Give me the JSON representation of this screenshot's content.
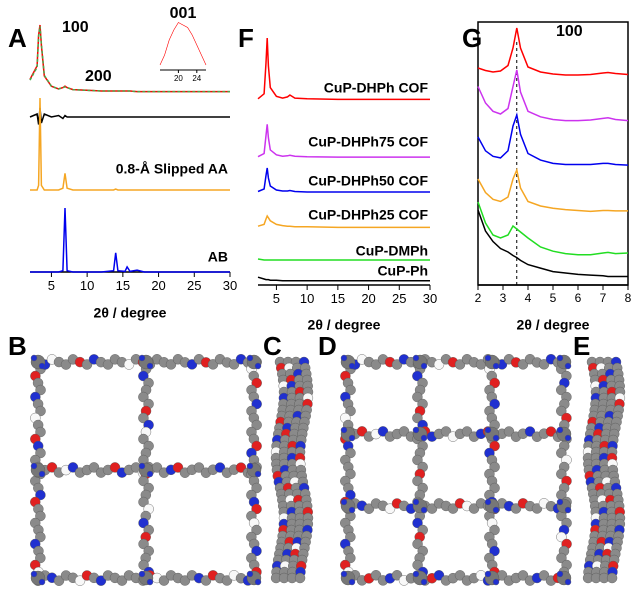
{
  "chart_data": [
    {
      "type": "line",
      "panel": "A",
      "xlabel": "2θ / degree",
      "xlim": [
        2,
        30
      ],
      "xticks": [
        5,
        10,
        15,
        20,
        25,
        30
      ],
      "annotations": [
        "100",
        "200"
      ],
      "x": [
        2,
        3,
        3.2,
        3.4,
        3.6,
        4,
        5,
        6,
        6.6,
        6.9,
        7.2,
        8,
        10,
        12,
        13.7,
        14,
        14.3,
        15.3,
        15.6,
        16,
        17,
        18,
        20,
        22,
        24,
        26,
        28,
        30
      ],
      "series": [
        {
          "color": "#ff0000",
          "values": [
            20,
            40,
            85,
            100,
            70,
            25,
            10,
            6,
            8,
            10,
            8,
            5,
            4,
            3,
            3,
            3,
            3,
            3,
            3,
            3,
            2,
            2,
            2,
            2,
            2,
            2,
            2,
            2
          ]
        },
        {
          "color": "#4aa84a",
          "dashed": true,
          "values": [
            19,
            38,
            83,
            98,
            72,
            26,
            10,
            6,
            8,
            9,
            8,
            5,
            4,
            3,
            3,
            3,
            3,
            3,
            3,
            3,
            2,
            2,
            2,
            2,
            2,
            2,
            2,
            2
          ]
        },
        {
          "color": "#000000",
          "values": [
            0,
            2,
            -5,
            6,
            -4,
            2,
            0,
            1,
            -1,
            1,
            0,
            0,
            0,
            0,
            0,
            0,
            0,
            0,
            0,
            0,
            0,
            0,
            0,
            0,
            0,
            0,
            0,
            0
          ]
        },
        {
          "name": "0.8-Å Slipped AA",
          "color": "#f5a623",
          "values": [
            0,
            0,
            5,
            100,
            5,
            0,
            0,
            0,
            2,
            18,
            2,
            0,
            0,
            0,
            0,
            1,
            0,
            0,
            0,
            0,
            0,
            0,
            0,
            0,
            0,
            0,
            0,
            0
          ]
        },
        {
          "name": "AB",
          "color": "#0000ee",
          "values": [
            0,
            0,
            0,
            0,
            0,
            0,
            0,
            0,
            2,
            100,
            2,
            0,
            0,
            0,
            2,
            30,
            2,
            1,
            8,
            1,
            3,
            0,
            0,
            0,
            0,
            0,
            0,
            0
          ]
        }
      ]
    },
    {
      "type": "line",
      "inset": true,
      "title": "001",
      "xlim": [
        16,
        26
      ],
      "xticks": [
        20,
        24
      ],
      "x": [
        16,
        17,
        18,
        19,
        20,
        21,
        22,
        23,
        24,
        25,
        26
      ],
      "series": [
        {
          "color": "#ff0000",
          "values": [
            10,
            30,
            60,
            80,
            95,
            90,
            85,
            70,
            50,
            30,
            10
          ]
        }
      ]
    },
    {
      "type": "line",
      "panel": "F",
      "xlabel": "2θ / degree",
      "xlim": [
        2,
        30
      ],
      "xticks": [
        5,
        10,
        15,
        20,
        25,
        30
      ],
      "x": [
        2,
        3,
        3.3,
        3.5,
        3.7,
        4,
        5,
        6,
        6.8,
        7.2,
        8,
        10,
        15,
        20,
        25,
        30
      ],
      "series": [
        {
          "name": "CuP-DHPh COF",
          "color": "#ff0000",
          "values": [
            2,
            10,
            60,
            100,
            55,
            20,
            6,
            3,
            5,
            8,
            3,
            2,
            1,
            1,
            1,
            1
          ]
        },
        {
          "name": "CuP-DHPh75 COF",
          "color": "#cc33ee",
          "values": [
            3,
            10,
            50,
            75,
            45,
            18,
            7,
            4,
            5,
            6,
            4,
            3,
            2,
            2,
            2,
            2
          ]
        },
        {
          "name": "CuP-DHPh50 COF",
          "color": "#0000ee",
          "values": [
            3,
            8,
            35,
            50,
            30,
            14,
            6,
            4,
            4,
            5,
            3,
            2,
            2,
            2,
            2,
            2
          ]
        },
        {
          "name": "CuP-DHPh25 COF",
          "color": "#f5a623",
          "values": [
            3,
            6,
            15,
            20,
            17,
            12,
            6,
            4,
            3,
            3,
            2,
            2,
            1,
            1,
            1,
            1
          ]
        },
        {
          "name": "CuP-DMPh",
          "color": "#22dd22",
          "values": [
            3,
            2,
            2,
            2,
            2,
            2,
            2,
            2,
            2,
            2,
            2,
            2,
            2,
            2,
            2,
            2
          ]
        },
        {
          "name": "CuP-Ph",
          "color": "#000000",
          "values": [
            8,
            5,
            4,
            4,
            4,
            3,
            3,
            2,
            2,
            2,
            2,
            2,
            2,
            2,
            2,
            2
          ]
        }
      ]
    },
    {
      "type": "line",
      "panel": "G",
      "xlabel": "2θ / degree",
      "xlim": [
        2,
        8
      ],
      "xticks": [
        2,
        3,
        4,
        5,
        6,
        7,
        8
      ],
      "annotations": [
        "100"
      ],
      "reference_x": 3.55,
      "x": [
        2,
        2.3,
        2.6,
        2.9,
        3.2,
        3.4,
        3.55,
        3.7,
        4,
        4.5,
        5,
        5.5,
        6,
        6.5,
        7,
        7.2,
        7.5,
        8
      ],
      "series": [
        {
          "color": "#ff0000",
          "values": [
            20,
            15,
            12,
            14,
            25,
            60,
            100,
            60,
            22,
            12,
            8,
            6,
            6,
            7,
            10,
            11,
            9,
            7
          ]
        },
        {
          "color": "#cc33ee",
          "values": [
            70,
            40,
            25,
            20,
            30,
            70,
            100,
            60,
            25,
            15,
            10,
            8,
            8,
            9,
            12,
            13,
            10,
            8
          ]
        },
        {
          "color": "#0000ee",
          "values": [
            60,
            35,
            25,
            22,
            35,
            80,
            100,
            65,
            30,
            18,
            12,
            10,
            10,
            10,
            12,
            12,
            10,
            9
          ]
        },
        {
          "color": "#f5a623",
          "values": [
            80,
            50,
            35,
            30,
            40,
            80,
            100,
            60,
            30,
            20,
            15,
            12,
            10,
            8,
            10,
            10,
            9,
            9
          ]
        },
        {
          "color": "#22dd22",
          "values": [
            100,
            65,
            45,
            40,
            45,
            60,
            55,
            50,
            40,
            25,
            18,
            14,
            12,
            12,
            15,
            16,
            14,
            15
          ]
        },
        {
          "color": "#000000",
          "values": [
            100,
            70,
            55,
            45,
            40,
            35,
            32,
            28,
            22,
            17,
            12,
            10,
            8,
            7,
            6,
            5,
            5,
            5
          ]
        }
      ]
    }
  ],
  "structure_panels": [
    "B",
    "C",
    "D",
    "E"
  ]
}
